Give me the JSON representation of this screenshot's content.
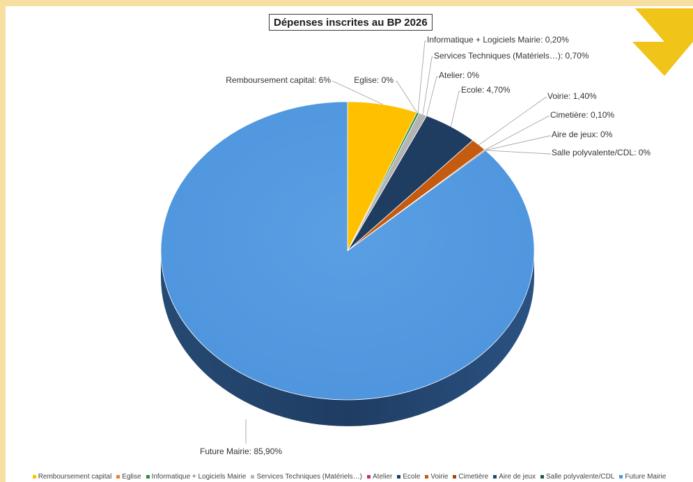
{
  "accent_colors": {
    "page_background": "#f6dfa0",
    "triangle": "#f0c419"
  },
  "chart_data": {
    "type": "pie",
    "title": "Dépenses inscrites au BP 2026",
    "legend_position": "bottom",
    "slices": [
      {
        "name": "Remboursement capital",
        "value": 6.0,
        "label": "Remboursement capital: 6%",
        "color": "#ffc000"
      },
      {
        "name": "Eglise",
        "value": 0.0,
        "label": "Eglise: 0%",
        "color": "#ed7d31"
      },
      {
        "name": "Informatique + Logiciels Mairie",
        "value": 0.2,
        "label": "Informatique + Logiciels Mairie: 0,20%",
        "color": "#2e8b3e"
      },
      {
        "name": "Services Techniques (Matériels…)",
        "value": 0.7,
        "label": "Services Techniques (Matériels…): 0,70%",
        "color": "#b4b4b4"
      },
      {
        "name": "Atelier",
        "value": 0.0,
        "label": "Atelier: 0%",
        "color": "#c0307a"
      },
      {
        "name": "Ecole",
        "value": 4.7,
        "label": "Ecole: 4,70%",
        "color": "#1f3c61"
      },
      {
        "name": "Voirie",
        "value": 1.4,
        "label": "Voirie: 1,40%",
        "color": "#c55a11"
      },
      {
        "name": "Cimetière",
        "value": 0.1,
        "label": "Cimetière: 0,10%",
        "color": "#9e480e"
      },
      {
        "name": "Aire de jeux",
        "value": 0.0,
        "label": "Aire de jeux: 0%",
        "color": "#264478"
      },
      {
        "name": "Salle polyvalente/CDL",
        "value": 0.0,
        "label": "Salle polyvalente/CDL: 0%",
        "color": "#1b5e3b"
      },
      {
        "name": "Future Mairie",
        "value": 85.9,
        "label": "Future Mairie: 85,90%",
        "color": "#5097df"
      }
    ]
  }
}
